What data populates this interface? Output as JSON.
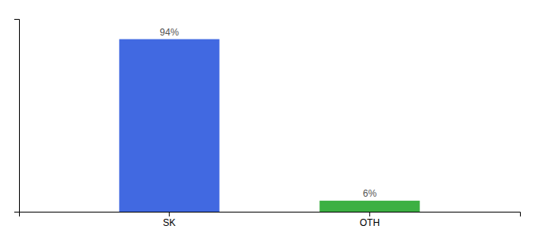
{
  "chart_data": {
    "type": "bar",
    "categories": [
      "SK",
      "OTH"
    ],
    "values": [
      94,
      6
    ],
    "value_labels": [
      "94%",
      "6%"
    ],
    "colors": [
      "#4169e1",
      "#3cb043"
    ],
    "ylim": [
      0,
      105
    ],
    "data_labels": true,
    "tick_labels": "x"
  }
}
